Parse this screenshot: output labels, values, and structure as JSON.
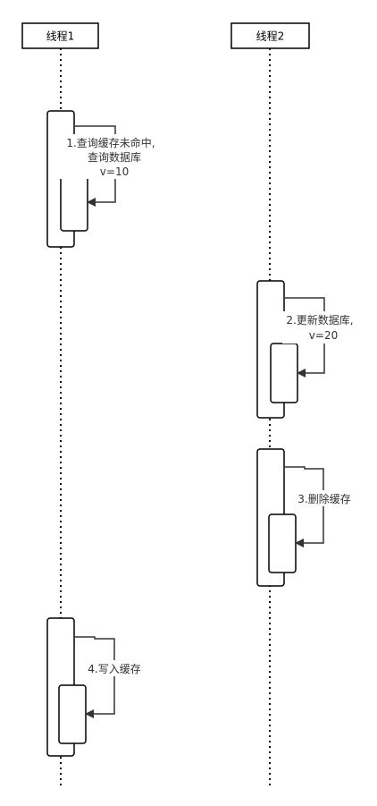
{
  "participants": [
    {
      "label": "线程1"
    },
    {
      "label": "线程2"
    }
  ],
  "messages": [
    {
      "lines": [
        "1.查询缓存未命中,",
        "查询数据库",
        "v=10"
      ]
    },
    {
      "lines": [
        "2.更新数据库,",
        "v=20"
      ]
    },
    {
      "lines": [
        "3.删除缓存"
      ]
    },
    {
      "lines": [
        "4.写入缓存"
      ]
    }
  ]
}
